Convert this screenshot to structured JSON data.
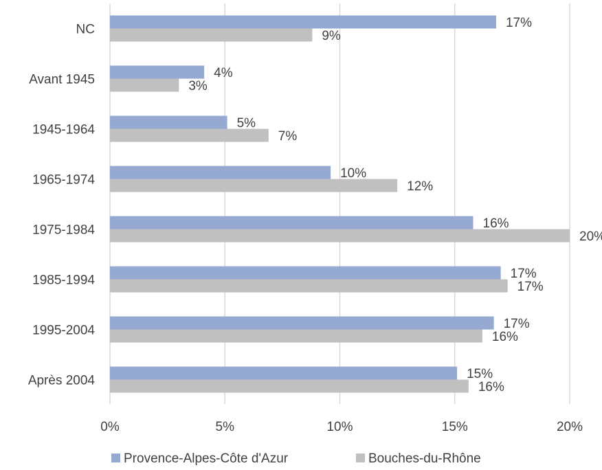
{
  "chart_data": {
    "type": "bar",
    "orientation": "horizontal",
    "categories": [
      "NC",
      "Avant 1945",
      "1945-1964",
      "1965-1974",
      "1975-1984",
      "1985-1994",
      "1995-2004",
      "Après 2004"
    ],
    "series": [
      {
        "name": "Provence-Alpes-Côte d'Azur",
        "color": "#96a9d0",
        "values": [
          16.8,
          4.1,
          5.1,
          9.6,
          15.8,
          17.0,
          16.7,
          15.1
        ],
        "labels": [
          "17%",
          "4%",
          "5%",
          "10%",
          "16%",
          "17%",
          "17%",
          "15%"
        ]
      },
      {
        "name": "Bouches-du-Rhône",
        "color": "#c0c0c0",
        "values": [
          8.8,
          3.0,
          6.9,
          12.5,
          20.0,
          17.3,
          16.2,
          15.6
        ],
        "labels": [
          "9%",
          "3%",
          "7%",
          "12%",
          "20%",
          "17%",
          "16%",
          "16%"
        ]
      }
    ],
    "xlim": [
      0,
      20
    ],
    "xticks": [
      0,
      5,
      10,
      15,
      20
    ],
    "xtick_labels": [
      "0%",
      "5%",
      "10%",
      "15%",
      "20%"
    ],
    "grid": "vertical",
    "legend": "bottom-center"
  }
}
